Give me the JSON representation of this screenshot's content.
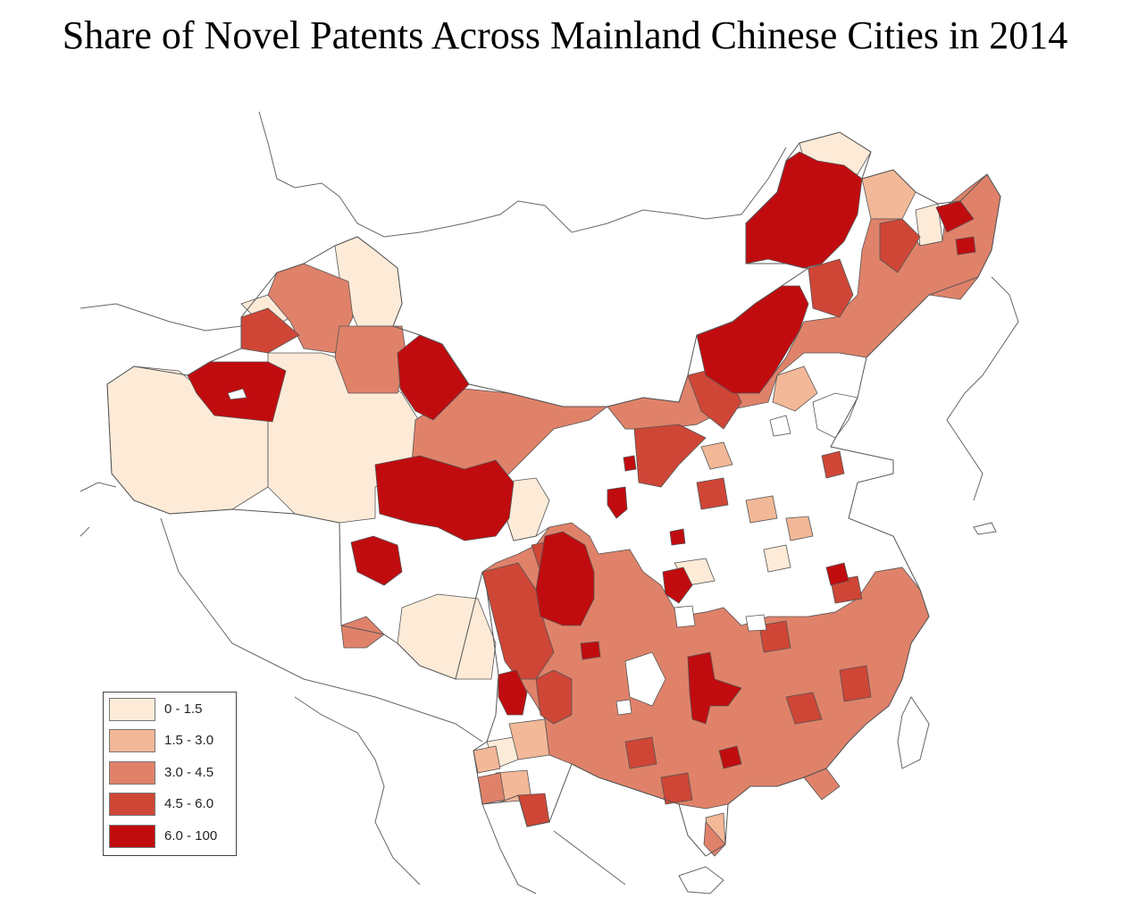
{
  "title": "Share of Novel Patents Across Mainland Chinese Cities in 2014",
  "colors": {
    "class_0_1_5": "#fdebd8",
    "class_1_5_3_0": "#f2b897",
    "class_3_0_4_5": "#e0826a",
    "class_4_5_6_0": "#cf4636",
    "class_6_0_100": "#c10c0f",
    "border": "#555555",
    "outline": "#666666",
    "sea": "#ffffff"
  },
  "legend": {
    "items": [
      {
        "label": "0 - 1.5",
        "color": "#fdebd8"
      },
      {
        "label": "1.5 - 3.0",
        "color": "#f2b897"
      },
      {
        "label": "3.0 - 4.5",
        "color": "#e0826a"
      },
      {
        "label": "4.5 - 6.0",
        "color": "#cf4636"
      },
      {
        "label": "6.0 - 100",
        "color": "#c10c0f"
      }
    ]
  }
}
